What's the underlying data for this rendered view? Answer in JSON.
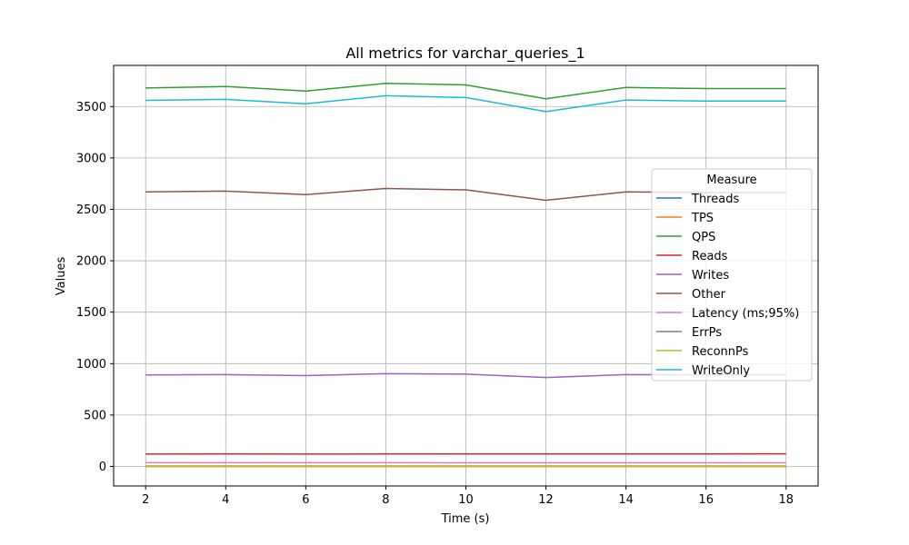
{
  "chart_data": {
    "type": "line",
    "title": "All metrics for varchar_queries_1",
    "xlabel": "Time (s)",
    "ylabel": "Values",
    "x": [
      2,
      4,
      6,
      8,
      10,
      12,
      14,
      16,
      18
    ],
    "xlim": [
      1.2,
      18.8
    ],
    "ylim": [
      -190,
      3900
    ],
    "xticks": [
      2,
      4,
      6,
      8,
      10,
      12,
      14,
      16,
      18
    ],
    "yticks": [
      0,
      500,
      1000,
      1500,
      2000,
      2500,
      3000,
      3500
    ],
    "grid": true,
    "legend": {
      "title": "Measure",
      "placement": "right"
    },
    "series": [
      {
        "name": "Threads",
        "color": "#1f77b4",
        "values": [
          1,
          1,
          1,
          1,
          1,
          1,
          1,
          1,
          1
        ]
      },
      {
        "name": "TPS",
        "color": "#ff7f0e",
        "values": [
          4,
          4,
          4,
          4,
          4,
          4,
          4,
          4,
          4
        ]
      },
      {
        "name": "QPS",
        "color": "#2ca02c",
        "values": [
          3680,
          3695,
          3650,
          3725,
          3710,
          3575,
          3685,
          3675,
          3675
        ]
      },
      {
        "name": "Reads",
        "color": "#d62728",
        "values": [
          120,
          122,
          120,
          121,
          122,
          122,
          122,
          122,
          123
        ]
      },
      {
        "name": "Writes",
        "color": "#9467bd",
        "values": [
          890,
          893,
          883,
          902,
          897,
          865,
          893,
          890,
          890
        ]
      },
      {
        "name": "Other",
        "color": "#8c564b",
        "values": [
          2670,
          2677,
          2644,
          2703,
          2690,
          2588,
          2670,
          2663,
          2663
        ]
      },
      {
        "name": "Latency (ms;95%)",
        "color": "#e377c2",
        "values": [
          36,
          36,
          36,
          36,
          35,
          35,
          35,
          35,
          35
        ]
      },
      {
        "name": "ErrPs",
        "color": "#7f7f7f",
        "values": [
          0,
          0,
          0,
          0,
          0,
          0,
          0,
          0,
          0
        ]
      },
      {
        "name": "ReconnPs",
        "color": "#bcbd22",
        "values": [
          0,
          0,
          0,
          0,
          0,
          0,
          0,
          0,
          0
        ]
      },
      {
        "name": "WriteOnly",
        "color": "#17becf",
        "values": [
          3560,
          3570,
          3527,
          3605,
          3587,
          3450,
          3563,
          3553,
          3553
        ]
      }
    ]
  }
}
